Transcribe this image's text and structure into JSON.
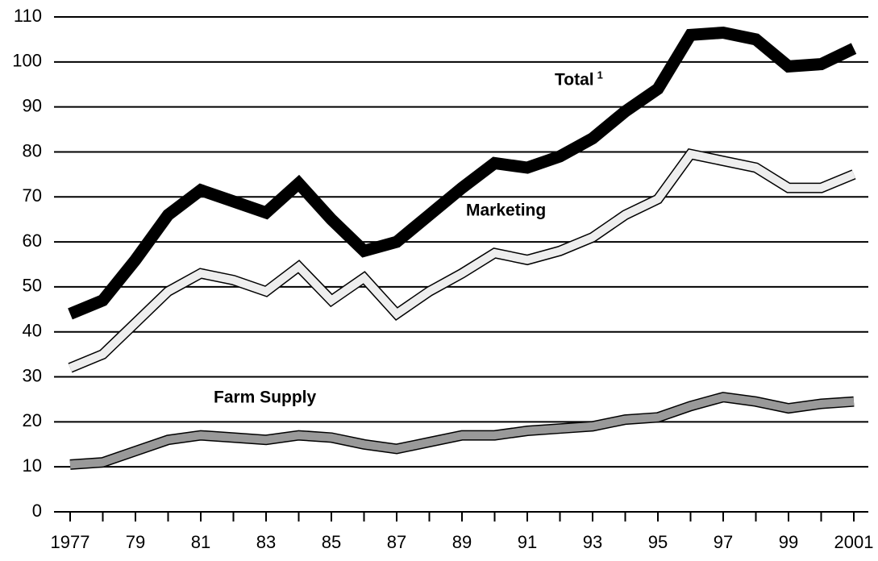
{
  "chart_data": {
    "type": "line",
    "categories": [
      "1977",
      null,
      "79",
      null,
      "81",
      null,
      "83",
      null,
      "85",
      null,
      "87",
      null,
      "89",
      null,
      "91",
      null,
      "93",
      null,
      "95",
      null,
      "97",
      null,
      "99",
      null,
      "2001"
    ],
    "series": [
      {
        "name": "Total",
        "footnote_mark": "1",
        "color": "#000000",
        "values": [
          44,
          47,
          56,
          66,
          71.5,
          69,
          66.5,
          73,
          65,
          58,
          60,
          66,
          72,
          77.5,
          76.5,
          79,
          83,
          89,
          94,
          106,
          106.5,
          105,
          99,
          99.5,
          103
        ]
      },
      {
        "name": "Marketing",
        "color": "#eeeeee",
        "values": [
          32,
          35,
          42,
          49,
          53,
          51.5,
          49,
          54.5,
          47,
          52,
          44,
          49,
          53,
          57.5,
          56,
          58,
          61,
          66,
          69.5,
          79.5,
          78,
          76.5,
          72,
          72,
          75
        ]
      },
      {
        "name": "Farm Supply",
        "color": "#999999",
        "values": [
          10.5,
          11,
          13.5,
          16,
          17,
          16.5,
          16,
          17,
          16.5,
          15,
          14,
          15.5,
          17,
          17,
          18,
          18.5,
          19,
          20.5,
          21,
          23.5,
          25.5,
          24.5,
          23,
          24,
          24.5
        ]
      }
    ],
    "ylim": [
      0,
      110
    ],
    "yticks": [
      0,
      10,
      20,
      30,
      40,
      50,
      60,
      70,
      80,
      90,
      100,
      110
    ],
    "grid": true
  }
}
